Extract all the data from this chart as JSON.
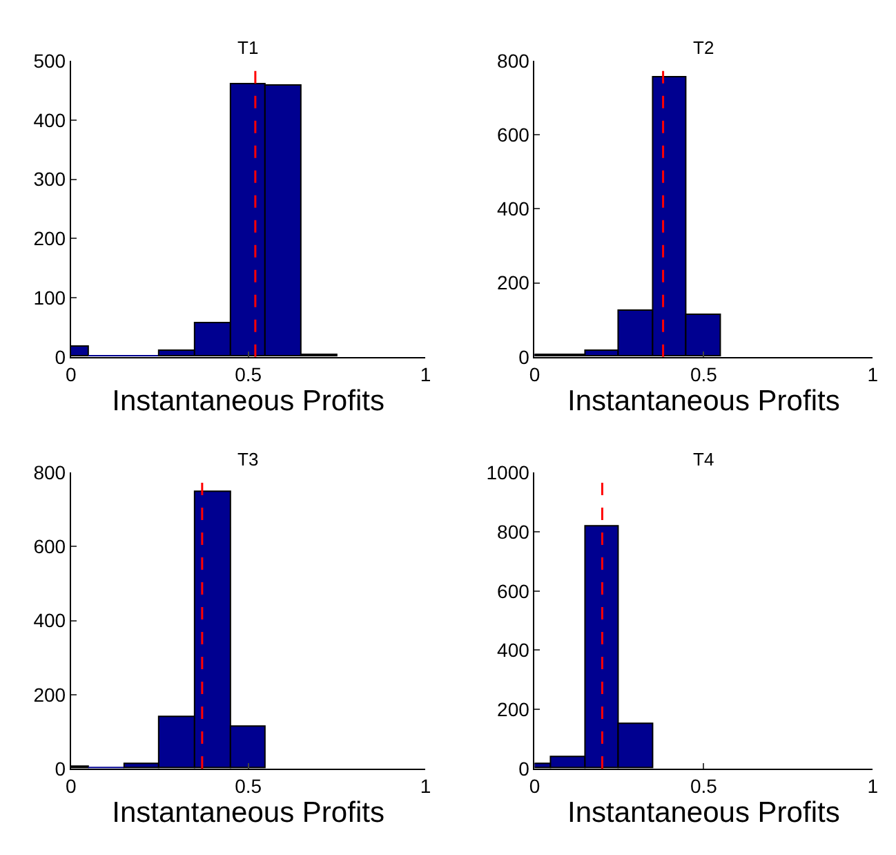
{
  "chart_data": [
    {
      "type": "histogram",
      "title": "T1",
      "xlabel": "Instantaneous Profits",
      "bins": [
        0,
        0.05,
        0.25,
        0.35,
        0.45,
        0.55,
        0.65,
        0.75
      ],
      "values": [
        18,
        0,
        10,
        57,
        461,
        458,
        3
      ],
      "color": "#000090",
      "xlim": [
        0,
        1
      ],
      "xticks": [
        0,
        0.5,
        1
      ],
      "ylim": [
        0,
        500
      ],
      "yticks": [
        0,
        100,
        200,
        300,
        400,
        500
      ],
      "ref_lines": [
        {
          "axis": "x",
          "value": 0.52,
          "color": "#ff0000",
          "line_style": "dashed"
        }
      ]
    },
    {
      "type": "histogram",
      "title": "T2",
      "xlabel": "Instantaneous Profits",
      "bins": [
        0,
        0.05,
        0.15,
        0.25,
        0.35,
        0.45,
        0.55
      ],
      "values": [
        5,
        5,
        17,
        123,
        756,
        112
      ],
      "color": "#000090",
      "xlim": [
        0,
        1
      ],
      "xticks": [
        0,
        0.5,
        1
      ],
      "ylim": [
        0,
        800
      ],
      "yticks": [
        0,
        200,
        400,
        600,
        800
      ],
      "ref_lines": [
        {
          "axis": "x",
          "value": 0.38,
          "color": "#ff0000",
          "line_style": "dashed"
        }
      ]
    },
    {
      "type": "histogram",
      "title": "T3",
      "xlabel": "Instantaneous Profits",
      "bins": [
        0,
        0.05,
        0.15,
        0.25,
        0.35,
        0.45,
        0.55
      ],
      "values": [
        4,
        0,
        11,
        138,
        746,
        113
      ],
      "color": "#000090",
      "xlim": [
        0,
        1
      ],
      "xticks": [
        0,
        0.5,
        1
      ],
      "ylim": [
        0,
        800
      ],
      "yticks": [
        0,
        200,
        400,
        600,
        800
      ],
      "ref_lines": [
        {
          "axis": "x",
          "value": 0.37,
          "color": "#ff0000",
          "line_style": "dashed"
        }
      ]
    },
    {
      "type": "histogram",
      "title": "T4",
      "xlabel": "Instantaneous Profits",
      "bins": [
        0,
        0.05,
        0.15,
        0.25,
        0.35
      ],
      "values": [
        14,
        38,
        820,
        152
      ],
      "color": "#000090",
      "xlim": [
        0,
        1
      ],
      "xticks": [
        0,
        0.5,
        1
      ],
      "ylim": [
        0,
        1000
      ],
      "yticks": [
        0,
        200,
        400,
        600,
        800,
        1000
      ],
      "ref_lines": [
        {
          "axis": "x",
          "value": 0.2,
          "color": "#ff0000",
          "line_style": "dashed"
        }
      ]
    }
  ]
}
